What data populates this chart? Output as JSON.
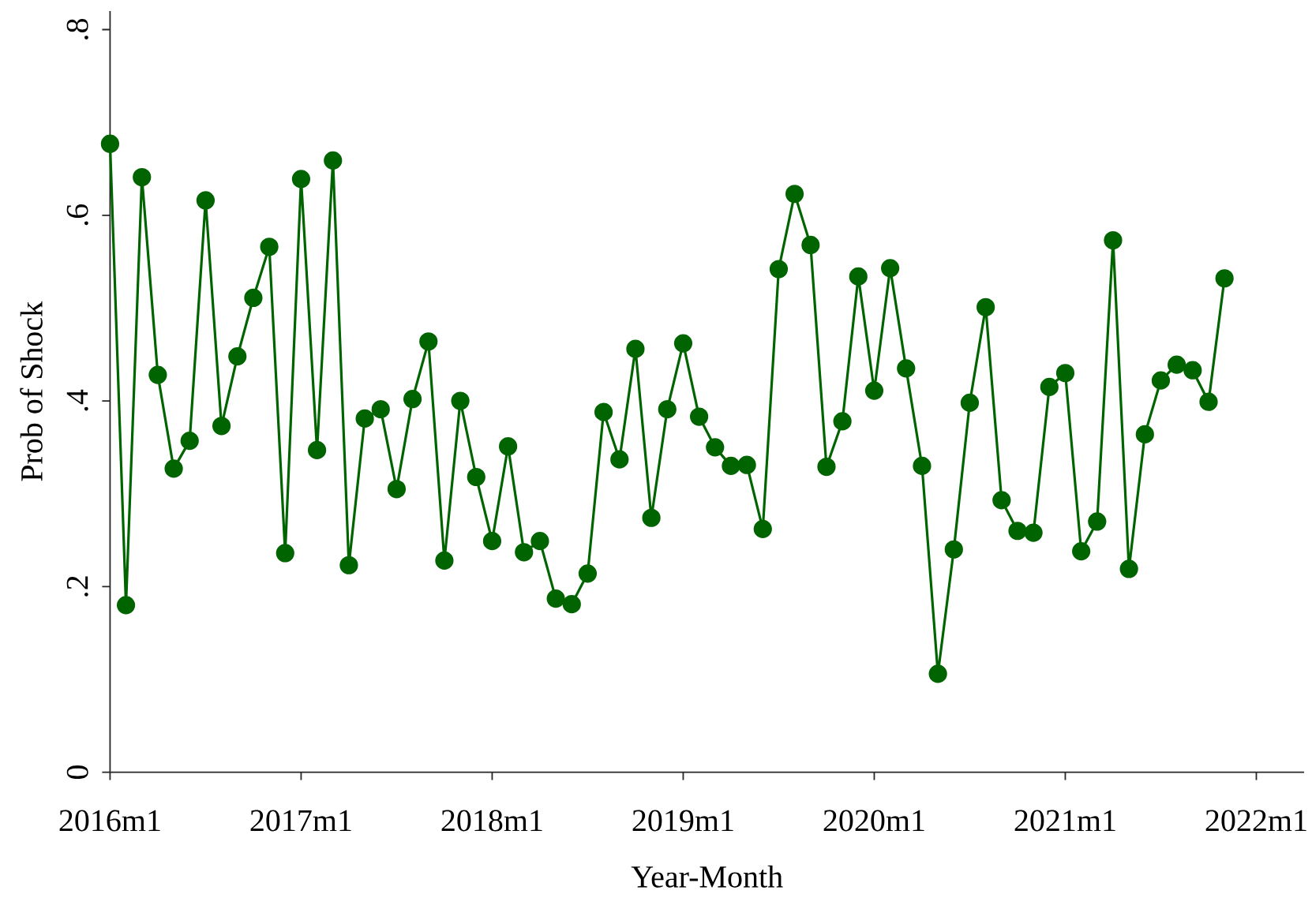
{
  "chart_data": {
    "type": "line",
    "xlabel": "Year-Month",
    "ylabel": "Prob of Shock",
    "x": [
      "2016-01",
      "2016-02",
      "2016-03",
      "2016-04",
      "2016-05",
      "2016-06",
      "2016-07",
      "2016-08",
      "2016-09",
      "2016-10",
      "2016-11",
      "2016-12",
      "2017-01",
      "2017-02",
      "2017-03",
      "2017-04",
      "2017-05",
      "2017-06",
      "2017-07",
      "2017-08",
      "2017-09",
      "2017-10",
      "2017-11",
      "2017-12",
      "2018-01",
      "2018-02",
      "2018-03",
      "2018-04",
      "2018-05",
      "2018-06",
      "2018-07",
      "2018-08",
      "2018-09",
      "2018-10",
      "2018-11",
      "2018-12",
      "2019-01",
      "2019-02",
      "2019-03",
      "2019-04",
      "2019-05",
      "2019-06",
      "2019-07",
      "2019-08",
      "2019-09",
      "2019-10",
      "2019-11",
      "2019-12",
      "2020-01",
      "2020-02",
      "2020-03",
      "2020-04",
      "2020-05",
      "2020-06",
      "2020-07",
      "2020-08",
      "2020-09",
      "2020-10",
      "2020-11",
      "2020-12",
      "2021-01",
      "2021-02",
      "2021-03",
      "2021-04",
      "2021-05",
      "2021-06",
      "2021-07",
      "2021-08",
      "2021-09",
      "2021-10",
      "2021-11"
    ],
    "series": [
      {
        "color": "#006400",
        "values": [
          0.677,
          0.18,
          0.641,
          0.428,
          0.327,
          0.357,
          0.616,
          0.373,
          0.448,
          0.511,
          0.566,
          0.236,
          0.639,
          0.347,
          0.659,
          0.223,
          0.381,
          0.391,
          0.305,
          0.402,
          0.464,
          0.228,
          0.4,
          0.318,
          0.249,
          0.351,
          0.237,
          0.249,
          0.187,
          0.181,
          0.214,
          0.388,
          0.337,
          0.456,
          0.274,
          0.391,
          0.462,
          0.383,
          0.35,
          0.33,
          0.331,
          0.262,
          0.542,
          0.623,
          0.568,
          0.329,
          0.378,
          0.534,
          0.411,
          0.543,
          0.435,
          0.33,
          0.106,
          0.24,
          0.398,
          0.501,
          0.293,
          0.26,
          0.258,
          0.415,
          0.43,
          0.238,
          0.27,
          0.573,
          0.219,
          0.364,
          0.422,
          0.439,
          0.433,
          0.399,
          0.532
        ]
      }
    ],
    "xlim": [
      "2016-01",
      "2022-04"
    ],
    "xticks": [
      {
        "value": "2016-01",
        "label": "2016m1"
      },
      {
        "value": "2017-01",
        "label": "2017m1"
      },
      {
        "value": "2018-01",
        "label": "2018m1"
      },
      {
        "value": "2019-01",
        "label": "2019m1"
      },
      {
        "value": "2020-01",
        "label": "2020m1"
      },
      {
        "value": "2021-01",
        "label": "2021m1"
      },
      {
        "value": "2022-01",
        "label": "2022m1"
      }
    ],
    "ylim": [
      0,
      0.82
    ],
    "yticks": [
      0,
      {
        "value": 0.2,
        "label": ".2"
      },
      {
        "value": 0.4,
        "label": ".4"
      },
      {
        "value": 0.6,
        "label": ".6"
      },
      {
        "value": 0.8,
        "label": ".8"
      }
    ],
    "marker": "circle",
    "line_style": "solid"
  }
}
